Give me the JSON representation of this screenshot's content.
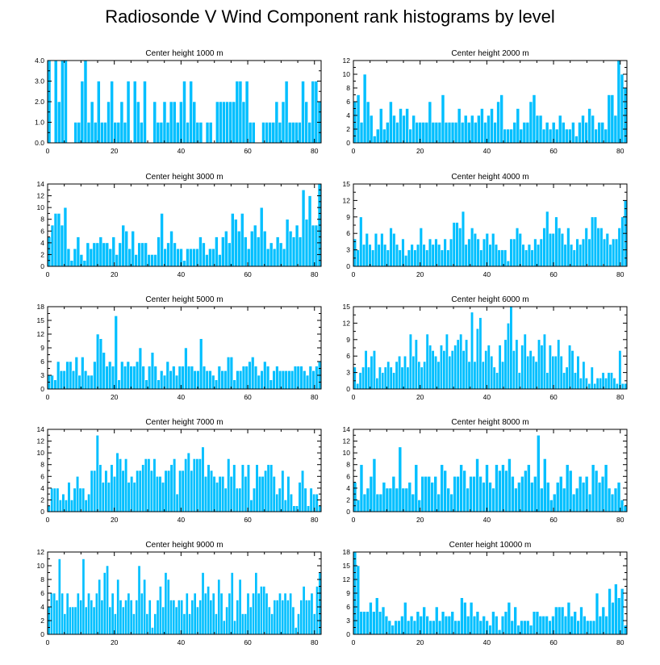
{
  "title": "Radiosonde V Wind Component rank histograms by level",
  "colors": {
    "bar": "#00bfff",
    "bar_edge": "#ffffff",
    "axis": "#000000"
  },
  "chart_data": [
    {
      "type": "bar",
      "title": "Center height 1000 m",
      "xlim": [
        0,
        82
      ],
      "ylim": [
        0,
        4
      ],
      "yticks": [
        "0.0",
        "1.0",
        "2.0",
        "3.0",
        "4.0"
      ],
      "yticks_values": [
        0,
        1,
        2,
        3,
        4
      ],
      "xticks": [
        "0",
        "20",
        "40",
        "60",
        "80"
      ],
      "xticks_values": [
        0,
        20,
        40,
        60,
        80
      ],
      "values": [
        4,
        0,
        4,
        2,
        4,
        4,
        0,
        0,
        1,
        1,
        3,
        4,
        1,
        2,
        1,
        3,
        1,
        1,
        2,
        3,
        1,
        1,
        2,
        1,
        3,
        0,
        3,
        2,
        1,
        3,
        0,
        0,
        2,
        1,
        1,
        2,
        1,
        2,
        2,
        1,
        2,
        3,
        1,
        3,
        2,
        1,
        1,
        0,
        1,
        1,
        0,
        2,
        2,
        2,
        2,
        2,
        2,
        3,
        3,
        2,
        3,
        1,
        1,
        0,
        0,
        1,
        1,
        1,
        1,
        2,
        1,
        2,
        3,
        1,
        1,
        1,
        1,
        3,
        2,
        1,
        3,
        3,
        2
      ]
    },
    {
      "type": "bar",
      "title": "Center height 2000 m",
      "xlim": [
        0,
        82
      ],
      "ylim": [
        0,
        12
      ],
      "yticks": [
        "0",
        "2",
        "4",
        "6",
        "8",
        "10",
        "12"
      ],
      "yticks_values": [
        0,
        2,
        4,
        6,
        8,
        10,
        12
      ],
      "xticks": [
        "0",
        "20",
        "40",
        "60",
        "80"
      ],
      "xticks_values": [
        0,
        20,
        40,
        60,
        80
      ],
      "values": [
        6,
        7,
        3,
        10,
        6,
        4,
        1,
        2,
        5,
        2,
        3,
        6,
        4,
        3,
        5,
        4,
        5,
        2,
        4,
        3,
        3,
        3,
        3,
        6,
        3,
        3,
        3,
        7,
        3,
        3,
        3,
        3,
        5,
        3,
        4,
        3,
        4,
        3,
        4,
        5,
        3,
        4,
        5,
        3,
        6,
        7,
        2,
        2,
        2,
        3,
        5,
        2,
        3,
        3,
        6,
        7,
        4,
        4,
        2,
        3,
        2,
        3,
        2,
        4,
        3,
        2,
        2,
        3,
        1,
        3,
        4,
        3,
        5,
        4,
        2,
        3,
        3,
        2,
        7,
        7,
        4,
        12,
        10,
        8
      ]
    },
    {
      "type": "bar",
      "title": "Center height 3000 m",
      "xlim": [
        0,
        82
      ],
      "ylim": [
        0,
        14
      ],
      "yticks": [
        "0",
        "2",
        "4",
        "6",
        "8",
        "10",
        "12",
        "14"
      ],
      "yticks_values": [
        0,
        2,
        4,
        6,
        8,
        10,
        12,
        14
      ],
      "xticks": [
        "0",
        "20",
        "40",
        "60",
        "80"
      ],
      "xticks_values": [
        0,
        20,
        40,
        60,
        80
      ],
      "values": [
        5,
        7,
        9,
        9,
        7,
        10,
        3,
        1,
        3,
        5,
        2,
        1,
        4,
        3,
        4,
        4,
        5,
        4,
        4,
        3,
        5,
        2,
        4,
        7,
        6,
        3,
        6,
        2,
        4,
        4,
        4,
        2,
        2,
        2,
        5,
        9,
        3,
        4,
        6,
        4,
        3,
        3,
        1,
        3,
        3,
        3,
        3,
        5,
        4,
        2,
        3,
        3,
        5,
        2,
        5,
        6,
        4,
        9,
        8,
        6,
        9,
        5,
        3,
        6,
        7,
        5,
        10,
        6,
        3,
        4,
        3,
        5,
        4,
        3,
        8,
        6,
        5,
        7,
        5,
        13,
        8,
        12,
        7,
        7,
        14
      ]
    },
    {
      "type": "bar",
      "title": "Center height 4000 m",
      "xlim": [
        0,
        82
      ],
      "ylim": [
        0,
        15
      ],
      "yticks": [
        "0",
        "3",
        "6",
        "9",
        "12",
        "15"
      ],
      "yticks_values": [
        0,
        3,
        6,
        9,
        12,
        15
      ],
      "xticks": [
        "0",
        "20",
        "40",
        "60",
        "80"
      ],
      "xticks_values": [
        0,
        20,
        40,
        60,
        80
      ],
      "values": [
        5,
        3,
        9,
        4,
        6,
        4,
        3,
        6,
        4,
        6,
        4,
        3,
        7,
        6,
        4,
        3,
        5,
        2,
        3,
        4,
        3,
        4,
        7,
        4,
        3,
        5,
        4,
        5,
        4,
        3,
        5,
        3,
        5,
        8,
        8,
        7,
        10,
        4,
        5,
        7,
        6,
        5,
        3,
        5,
        6,
        4,
        6,
        4,
        3,
        3,
        3,
        1,
        5,
        5,
        7,
        6,
        4,
        3,
        4,
        3,
        5,
        4,
        5,
        7,
        10,
        6,
        6,
        9,
        7,
        6,
        4,
        7,
        4,
        3,
        5,
        4,
        5,
        7,
        5,
        9,
        9,
        7,
        7,
        5,
        6,
        4,
        5,
        5,
        7,
        9,
        12
      ]
    },
    {
      "type": "bar",
      "title": "Center height 5000 m",
      "xlim": [
        0,
        82
      ],
      "ylim": [
        0,
        18
      ],
      "yticks": [
        "0",
        "3",
        "6",
        "9",
        "12",
        "15",
        "18"
      ],
      "yticks_values": [
        0,
        3,
        6,
        9,
        12,
        15,
        18
      ],
      "xticks": [
        "0",
        "20",
        "40",
        "60",
        "80"
      ],
      "xticks_values": [
        0,
        20,
        40,
        60,
        80
      ],
      "values": [
        3,
        3,
        2,
        6,
        4,
        4,
        6,
        6,
        4,
        7,
        3,
        7,
        4,
        3,
        3,
        6,
        12,
        11,
        8,
        5,
        6,
        5,
        16,
        2,
        6,
        5,
        6,
        5,
        5,
        6,
        9,
        5,
        2,
        5,
        8,
        5,
        2,
        4,
        3,
        6,
        4,
        5,
        3,
        5,
        5,
        9,
        5,
        5,
        4,
        4,
        11,
        5,
        4,
        4,
        3,
        2,
        5,
        4,
        4,
        7,
        7,
        2,
        4,
        4,
        5,
        5,
        6,
        7,
        5,
        3,
        4,
        6,
        5,
        2,
        4,
        5,
        4,
        4,
        4,
        4,
        4,
        5,
        5,
        5,
        4,
        3,
        5,
        4,
        5,
        6
      ]
    },
    {
      "type": "bar",
      "title": "Center height 6000 m",
      "xlim": [
        0,
        82
      ],
      "ylim": [
        0,
        15
      ],
      "yticks": [
        "0",
        "3",
        "6",
        "9",
        "12",
        "15"
      ],
      "yticks_values": [
        0,
        3,
        6,
        9,
        12,
        15
      ],
      "xticks": [
        "0",
        "20",
        "40",
        "60",
        "80"
      ],
      "xticks_values": [
        0,
        20,
        40,
        60,
        80
      ],
      "values": [
        4,
        1,
        3,
        4,
        7,
        4,
        6,
        7,
        2,
        4,
        3,
        4,
        5,
        4,
        3,
        5,
        6,
        4,
        6,
        4,
        10,
        6,
        9,
        5,
        4,
        5,
        10,
        8,
        7,
        6,
        5,
        8,
        7,
        10,
        6,
        7,
        8,
        9,
        10,
        7,
        9,
        5,
        14,
        5,
        11,
        13,
        5,
        7,
        8,
        6,
        4,
        3,
        8,
        5,
        9,
        12,
        15,
        7,
        9,
        3,
        8,
        10,
        6,
        7,
        6,
        5,
        9,
        8,
        10,
        3,
        8,
        6,
        6,
        9,
        6,
        3,
        4,
        8,
        7,
        3,
        6,
        2,
        5,
        2,
        1,
        4,
        1,
        2,
        2,
        3,
        2,
        3,
        3,
        2,
        1,
        7,
        1,
        1
      ]
    },
    {
      "type": "bar",
      "title": "Center height 7000 m",
      "xlim": [
        0,
        82
      ],
      "ylim": [
        0,
        14
      ],
      "yticks": [
        "0",
        "2",
        "4",
        "6",
        "8",
        "10",
        "12",
        "14"
      ],
      "yticks_values": [
        0,
        2,
        4,
        6,
        8,
        10,
        12,
        14
      ],
      "xticks": [
        "0",
        "20",
        "40",
        "60",
        "80"
      ],
      "xticks_values": [
        0,
        20,
        40,
        60,
        80
      ],
      "values": [
        1,
        4,
        4,
        4,
        2,
        3,
        2,
        5,
        2,
        4,
        6,
        4,
        4,
        2,
        3,
        7,
        7,
        13,
        8,
        5,
        7,
        5,
        8,
        6,
        10,
        9,
        7,
        9,
        5,
        6,
        5,
        7,
        7,
        8,
        9,
        9,
        7,
        9,
        6,
        6,
        5,
        7,
        7,
        8,
        9,
        3,
        7,
        7,
        9,
        10,
        7,
        9,
        9,
        9,
        11,
        6,
        8,
        7,
        6,
        5,
        6,
        6,
        4,
        9,
        6,
        8,
        4,
        4,
        8,
        6,
        8,
        2,
        4,
        8,
        6,
        6,
        7,
        8,
        8,
        6,
        3,
        4,
        7,
        2,
        6,
        3,
        1,
        1,
        5,
        7,
        4,
        1,
        4,
        3,
        3,
        1
      ]
    },
    {
      "type": "bar",
      "title": "Center height 8000 m",
      "xlim": [
        0,
        82
      ],
      "ylim": [
        0,
        14
      ],
      "yticks": [
        "0",
        "2",
        "4",
        "6",
        "8",
        "10",
        "12",
        "14"
      ],
      "yticks_values": [
        0,
        2,
        4,
        6,
        8,
        10,
        12,
        14
      ],
      "xticks": [
        "0",
        "20",
        "40",
        "60",
        "80"
      ],
      "xticks_values": [
        0,
        20,
        40,
        60,
        80
      ],
      "values": [
        5,
        2,
        8,
        3,
        4,
        6,
        9,
        3,
        3,
        5,
        4,
        4,
        6,
        4,
        11,
        4,
        4,
        5,
        3,
        8,
        2,
        6,
        6,
        6,
        5,
        6,
        3,
        8,
        7,
        4,
        3,
        6,
        6,
        8,
        7,
        4,
        6,
        6,
        9,
        6,
        5,
        8,
        5,
        4,
        8,
        7,
        8,
        7,
        9,
        6,
        4,
        5,
        6,
        7,
        8,
        5,
        6,
        13,
        4,
        9,
        5,
        2,
        3,
        5,
        6,
        4,
        8,
        7,
        3,
        4,
        6,
        5,
        6,
        3,
        8,
        7,
        5,
        6,
        8,
        4,
        3,
        4,
        5,
        2,
        1
      ]
    },
    {
      "type": "bar",
      "title": "Center height 9000 m",
      "xlim": [
        0,
        82
      ],
      "ylim": [
        0,
        12
      ],
      "yticks": [
        "0",
        "2",
        "4",
        "6",
        "8",
        "10",
        "12"
      ],
      "yticks_values": [
        0,
        2,
        4,
        6,
        8,
        10,
        12
      ],
      "xticks": [
        "0",
        "20",
        "40",
        "60",
        "80"
      ],
      "xticks_values": [
        0,
        20,
        40,
        60,
        80
      ],
      "values": [
        4,
        6,
        6,
        5,
        11,
        6,
        3,
        6,
        4,
        4,
        4,
        6,
        5,
        11,
        4,
        6,
        5,
        4,
        6,
        8,
        5,
        9,
        10,
        4,
        6,
        3,
        8,
        5,
        4,
        5,
        6,
        5,
        3,
        5,
        10,
        6,
        8,
        3,
        5,
        1,
        3,
        5,
        7,
        4,
        9,
        8,
        5,
        5,
        4,
        5,
        5,
        3,
        6,
        3,
        5,
        6,
        4,
        5,
        9,
        6,
        7,
        5,
        6,
        3,
        8,
        6,
        2,
        4,
        6,
        9,
        2,
        5,
        8,
        3,
        3,
        6,
        4,
        6,
        9,
        6,
        7,
        7,
        6,
        4,
        3,
        5,
        5,
        6,
        5,
        6,
        5,
        6,
        4,
        1,
        3,
        5,
        7,
        5,
        5,
        6,
        3,
        7,
        9
      ]
    },
    {
      "type": "bar",
      "title": "Center height 10000 m",
      "xlim": [
        0,
        82
      ],
      "ylim": [
        0,
        18
      ],
      "yticks": [
        "0",
        "3",
        "6",
        "9",
        "12",
        "15",
        "18"
      ],
      "yticks_values": [
        0,
        3,
        6,
        9,
        12,
        15,
        18
      ],
      "xticks": [
        "0",
        "20",
        "40",
        "60",
        "80"
      ],
      "xticks_values": [
        0,
        20,
        40,
        60,
        80
      ],
      "values": [
        18,
        15,
        5,
        5,
        5,
        7,
        5,
        8,
        5,
        6,
        4,
        3,
        2,
        3,
        3,
        4,
        7,
        3,
        4,
        3,
        5,
        4,
        6,
        4,
        3,
        3,
        6,
        3,
        5,
        4,
        4,
        5,
        3,
        3,
        8,
        7,
        4,
        7,
        4,
        5,
        3,
        4,
        3,
        2,
        5,
        4,
        1,
        4,
        5,
        7,
        3,
        6,
        2,
        3,
        3,
        3,
        2,
        5,
        5,
        4,
        4,
        4,
        3,
        4,
        6,
        6,
        6,
        4,
        7,
        4,
        5,
        3,
        6,
        4,
        3,
        3,
        3,
        9,
        4,
        6,
        4,
        10,
        7,
        11,
        8,
        10,
        2
      ]
    }
  ]
}
